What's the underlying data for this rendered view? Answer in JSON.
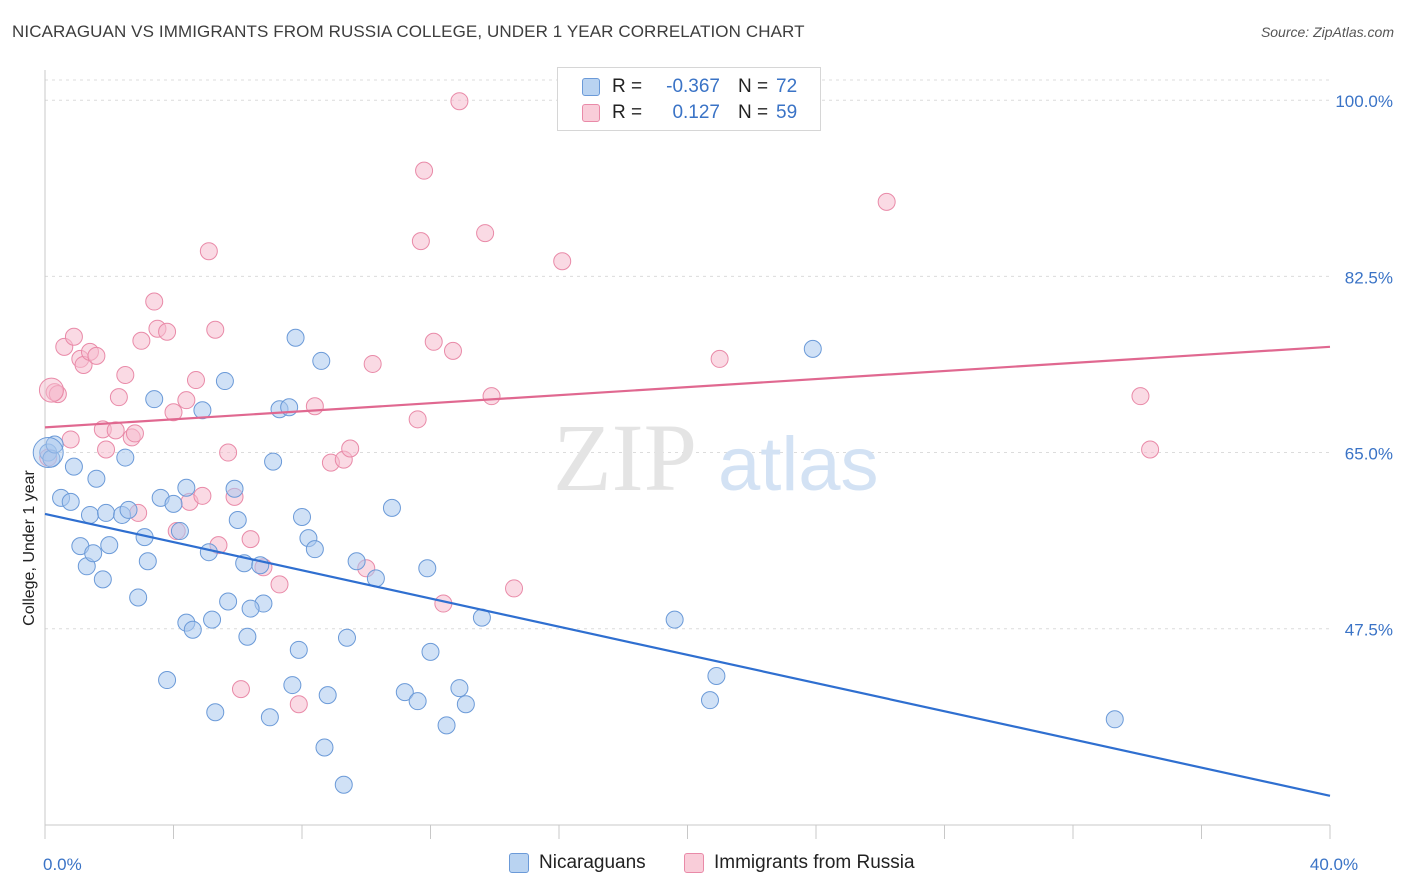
{
  "title": "NICARAGUAN VS IMMIGRANTS FROM RUSSIA COLLEGE, UNDER 1 YEAR CORRELATION CHART",
  "source": "Source: ZipAtlas.com",
  "watermark": {
    "zip": "ZIP",
    "atlas": "atlas"
  },
  "colors": {
    "blue_fill": "#a9c8ee",
    "blue_stroke": "#6b9ad8",
    "blue_line": "#2f6fd0",
    "pink_fill": "#f6bccd",
    "pink_stroke": "#e98aa8",
    "pink_line": "#e06890",
    "tick_text": "#3a73c6"
  },
  "legend": {
    "rows": [
      {
        "r_label": "R =",
        "r_value": "-0.367",
        "n_label": "N =",
        "n_value": "72"
      },
      {
        "r_label": "R =",
        "r_value": "0.127",
        "n_label": "N =",
        "n_value": "59"
      }
    ]
  },
  "bottom_legend": {
    "series1": "Nicaraguans",
    "series2": "Immigrants from Russia"
  },
  "chart_data": {
    "type": "scatter",
    "title": "NICARAGUAN VS IMMIGRANTS FROM RUSSIA COLLEGE, UNDER 1 YEAR CORRELATION CHART",
    "xlabel": "",
    "ylabel": "College, Under 1 year",
    "xlim": [
      0,
      40
    ],
    "ylim": [
      28,
      103
    ],
    "x_tick_labels": [
      "0.0%",
      "40.0%"
    ],
    "y_ticks": [
      47.5,
      65.0,
      82.5,
      100.0
    ],
    "y_tick_labels": [
      "47.5%",
      "65.0%",
      "82.5%",
      "100.0%"
    ],
    "grid": true,
    "series": [
      {
        "name": "Nicaraguans",
        "r": -0.367,
        "n": 72,
        "trend": {
          "x": [
            0,
            40
          ],
          "y": [
            58.9,
            30.9
          ]
        },
        "points": [
          [
            0.1,
            65.0
          ],
          [
            0.2,
            64.4
          ],
          [
            0.5,
            60.5
          ],
          [
            0.8,
            60.1
          ],
          [
            0.9,
            63.6
          ],
          [
            1.1,
            55.7
          ],
          [
            1.3,
            53.7
          ],
          [
            1.4,
            58.8
          ],
          [
            1.5,
            55.0
          ],
          [
            1.6,
            62.4
          ],
          [
            1.8,
            52.4
          ],
          [
            1.9,
            59.0
          ],
          [
            2.0,
            55.8
          ],
          [
            2.4,
            58.8
          ],
          [
            2.6,
            59.3
          ],
          [
            2.9,
            50.6
          ],
          [
            3.1,
            56.6
          ],
          [
            3.2,
            54.2
          ],
          [
            3.4,
            70.3
          ],
          [
            3.6,
            60.5
          ],
          [
            3.8,
            42.4
          ],
          [
            4.0,
            59.9
          ],
          [
            4.2,
            57.2
          ],
          [
            4.4,
            61.5
          ],
          [
            4.4,
            48.1
          ],
          [
            4.6,
            47.4
          ],
          [
            4.9,
            69.2
          ],
          [
            5.1,
            55.1
          ],
          [
            5.2,
            48.4
          ],
          [
            5.3,
            39.2
          ],
          [
            5.6,
            72.1
          ],
          [
            5.7,
            50.2
          ],
          [
            5.9,
            61.4
          ],
          [
            6.0,
            58.3
          ],
          [
            6.2,
            54.0
          ],
          [
            6.3,
            46.7
          ],
          [
            6.7,
            53.8
          ],
          [
            6.8,
            50.0
          ],
          [
            7.0,
            38.7
          ],
          [
            7.1,
            64.1
          ],
          [
            7.3,
            69.3
          ],
          [
            7.6,
            69.5
          ],
          [
            7.7,
            41.9
          ],
          [
            7.8,
            76.4
          ],
          [
            7.9,
            45.4
          ],
          [
            8.0,
            58.6
          ],
          [
            8.2,
            56.5
          ],
          [
            8.4,
            55.4
          ],
          [
            8.6,
            74.1
          ],
          [
            8.8,
            40.9
          ],
          [
            8.7,
            35.7
          ],
          [
            9.3,
            32.0
          ],
          [
            9.4,
            46.6
          ],
          [
            9.7,
            54.2
          ],
          [
            10.3,
            52.5
          ],
          [
            10.8,
            59.5
          ],
          [
            11.2,
            41.2
          ],
          [
            11.6,
            40.3
          ],
          [
            11.9,
            53.5
          ],
          [
            12.0,
            45.2
          ],
          [
            12.5,
            37.9
          ],
          [
            12.9,
            41.6
          ],
          [
            13.1,
            40.0
          ],
          [
            13.6,
            48.6
          ],
          [
            19.6,
            48.4
          ],
          [
            20.9,
            42.8
          ],
          [
            20.7,
            40.4
          ],
          [
            23.9,
            75.3
          ],
          [
            33.3,
            38.5
          ],
          [
            0.3,
            65.8
          ],
          [
            2.5,
            64.5
          ],
          [
            6.4,
            49.5
          ]
        ]
      },
      {
        "name": "Immigrants from Russia",
        "r": 0.127,
        "n": 59,
        "trend": {
          "x": [
            0,
            40
          ],
          "y": [
            67.5,
            75.5
          ]
        },
        "points": [
          [
            0.1,
            64.5
          ],
          [
            0.3,
            71.0
          ],
          [
            0.4,
            70.8
          ],
          [
            0.6,
            75.5
          ],
          [
            0.8,
            66.3
          ],
          [
            0.9,
            76.5
          ],
          [
            1.1,
            74.3
          ],
          [
            1.2,
            73.7
          ],
          [
            1.4,
            75.0
          ],
          [
            1.6,
            74.6
          ],
          [
            1.8,
            67.3
          ],
          [
            1.9,
            65.3
          ],
          [
            2.2,
            67.2
          ],
          [
            2.3,
            70.5
          ],
          [
            2.5,
            72.7
          ],
          [
            2.7,
            66.5
          ],
          [
            2.8,
            66.9
          ],
          [
            2.9,
            59.0
          ],
          [
            3.0,
            76.1
          ],
          [
            3.4,
            80.0
          ],
          [
            3.5,
            77.3
          ],
          [
            3.8,
            77.0
          ],
          [
            4.0,
            69.0
          ],
          [
            4.1,
            57.2
          ],
          [
            4.4,
            70.2
          ],
          [
            4.5,
            60.1
          ],
          [
            4.7,
            72.2
          ],
          [
            4.9,
            60.7
          ],
          [
            5.1,
            85.0
          ],
          [
            5.3,
            77.2
          ],
          [
            5.4,
            55.8
          ],
          [
            5.7,
            65.0
          ],
          [
            5.9,
            60.6
          ],
          [
            6.1,
            41.5
          ],
          [
            6.4,
            56.4
          ],
          [
            6.8,
            53.6
          ],
          [
            7.3,
            51.9
          ],
          [
            7.9,
            40.0
          ],
          [
            8.4,
            69.6
          ],
          [
            8.9,
            64.0
          ],
          [
            9.3,
            64.3
          ],
          [
            9.5,
            65.4
          ],
          [
            10.0,
            53.5
          ],
          [
            10.2,
            73.8
          ],
          [
            11.6,
            68.3
          ],
          [
            11.7,
            86.0
          ],
          [
            11.8,
            93.0
          ],
          [
            12.1,
            76.0
          ],
          [
            12.4,
            50.0
          ],
          [
            12.7,
            75.1
          ],
          [
            12.9,
            99.9
          ],
          [
            13.7,
            86.8
          ],
          [
            13.9,
            70.6
          ],
          [
            14.6,
            51.5
          ],
          [
            16.1,
            84.0
          ],
          [
            21.0,
            74.3
          ],
          [
            26.2,
            89.9
          ],
          [
            34.1,
            70.6
          ],
          [
            34.4,
            65.3
          ]
        ]
      }
    ]
  }
}
